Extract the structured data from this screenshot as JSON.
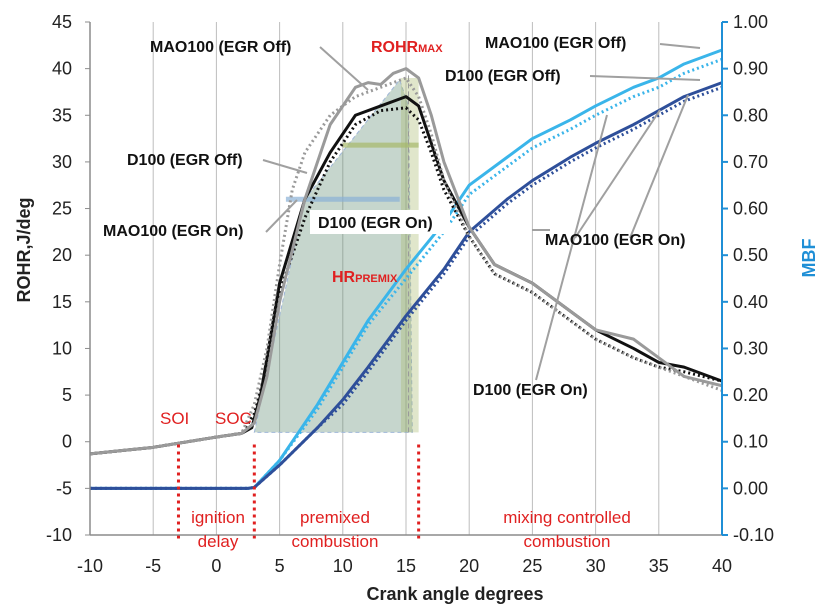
{
  "chart_data": {
    "type": "line",
    "xlabel": "Crank angle degrees",
    "ylabel": "ROHR,J/deg",
    "y2label": "MBF",
    "xlim": [
      -10,
      40
    ],
    "ylim": [
      -10,
      45
    ],
    "y2lim": [
      -0.1,
      1.0
    ],
    "xticks": [
      "-10",
      "-5",
      "0",
      "5",
      "10",
      "15",
      "20",
      "25",
      "30",
      "35",
      "40"
    ],
    "yticks": [
      "-10",
      "-5",
      "0",
      "5",
      "10",
      "15",
      "20",
      "25",
      "30",
      "35",
      "40",
      "45"
    ],
    "y2ticks": [
      "-0.10",
      "0.00",
      "0.10",
      "0.20",
      "0.30",
      "0.40",
      "0.50",
      "0.60",
      "0.70",
      "0.80",
      "0.90",
      "1.00"
    ],
    "grid": "vertical",
    "series_rohr": [
      {
        "color": "#111111",
        "dash": "solid",
        "x": [
          -10,
          -5,
          0,
          2,
          2.8,
          3.5,
          5,
          7,
          9,
          11,
          13,
          15,
          16,
          17,
          18,
          20,
          22,
          25,
          28,
          30,
          33,
          35,
          37,
          40
        ],
        "y": [
          -1.3,
          -0.6,
          0.5,
          0.9,
          1.5,
          5,
          17,
          26,
          31,
          35,
          36,
          37,
          36,
          32,
          28,
          23,
          19,
          17,
          14,
          12,
          10,
          8.5,
          8,
          6.5
        ]
      },
      {
        "color": "#111111",
        "dash": "dotted",
        "x": [
          -10,
          -5,
          0,
          2,
          3,
          4,
          5,
          7,
          9,
          11,
          13,
          15,
          16,
          17,
          18,
          20,
          22,
          25,
          28,
          30,
          33,
          35,
          37,
          40
        ],
        "y": [
          -1.3,
          -0.6,
          0.5,
          0.9,
          3,
          8,
          16,
          24,
          30,
          34,
          35.5,
          35.8,
          34.5,
          31,
          27,
          22,
          18,
          16,
          13,
          11,
          9,
          8,
          7.5,
          6.5
        ]
      },
      {
        "color": "#9a9a9a",
        "dash": "solid",
        "x": [
          -10,
          -5,
          0,
          2,
          3,
          4,
          5,
          7,
          9,
          11,
          12,
          13,
          14,
          15,
          16,
          17,
          18,
          20,
          22,
          25,
          28,
          30,
          33,
          35,
          37,
          40
        ],
        "y": [
          -1.3,
          -0.6,
          0.5,
          0.9,
          2,
          7,
          15,
          26,
          34,
          38,
          38.5,
          38.3,
          39.5,
          40,
          39,
          35,
          30,
          23,
          19,
          17,
          14,
          12,
          11,
          9,
          7,
          6
        ]
      },
      {
        "color": "#9a9a9a",
        "dash": "dotted",
        "x": [
          -10,
          -5,
          0,
          2,
          3,
          4,
          5,
          6,
          7,
          8,
          9,
          11,
          13,
          15,
          16,
          17,
          18,
          20,
          22,
          25,
          28,
          30,
          33,
          35,
          37,
          40
        ],
        "y": [
          -1.3,
          -0.6,
          0.5,
          0.9,
          4,
          10,
          19,
          27,
          31,
          33,
          35,
          37,
          38,
          39,
          37,
          33,
          28,
          22,
          18,
          16,
          13,
          11,
          9,
          8,
          7,
          5.5
        ]
      }
    ],
    "series_mbf": [
      {
        "color": "#3ab5ea",
        "dash": "solid",
        "x": [
          -10,
          2.5,
          3,
          5,
          8,
          10,
          12,
          15,
          18,
          20,
          23,
          25,
          28,
          30,
          33,
          35,
          37,
          40
        ],
        "y": [
          0,
          0,
          0.002,
          0.06,
          0.18,
          0.27,
          0.36,
          0.47,
          0.57,
          0.65,
          0.71,
          0.75,
          0.79,
          0.82,
          0.86,
          0.88,
          0.91,
          0.94
        ]
      },
      {
        "color": "#3ab5ea",
        "dash": "dotted",
        "x": [
          -10,
          2.5,
          3,
          5,
          8,
          10,
          12,
          15,
          18,
          20,
          23,
          25,
          28,
          30,
          33,
          35,
          37,
          40
        ],
        "y": [
          0,
          0,
          0.002,
          0.06,
          0.17,
          0.26,
          0.35,
          0.45,
          0.55,
          0.63,
          0.69,
          0.73,
          0.77,
          0.8,
          0.84,
          0.86,
          0.89,
          0.92
        ]
      },
      {
        "color": "#2e4f9a",
        "dash": "solid",
        "x": [
          -10,
          2.5,
          3,
          5,
          8,
          10,
          12,
          15,
          18,
          20,
          23,
          25,
          28,
          30,
          33,
          35,
          37,
          40
        ],
        "y": [
          0,
          0,
          0.002,
          0.05,
          0.13,
          0.19,
          0.26,
          0.37,
          0.47,
          0.55,
          0.62,
          0.66,
          0.71,
          0.74,
          0.78,
          0.81,
          0.84,
          0.87
        ]
      },
      {
        "color": "#2e4f9a",
        "dash": "dotted",
        "x": [
          -10,
          2.5,
          3,
          5,
          8,
          10,
          12,
          15,
          18,
          20,
          23,
          25,
          28,
          30,
          33,
          35,
          37,
          40
        ],
        "y": [
          0,
          0,
          0.002,
          0.05,
          0.13,
          0.18,
          0.25,
          0.36,
          0.46,
          0.54,
          0.61,
          0.65,
          0.7,
          0.73,
          0.77,
          0.8,
          0.83,
          0.86
        ]
      }
    ],
    "premix_area_vertices": [
      [
        3,
        1
      ],
      [
        7,
        26
      ],
      [
        14.5,
        38.8
      ],
      [
        15.2,
        36
      ],
      [
        15.5,
        1
      ]
    ],
    "premix_fill": "#5b8a70",
    "marker_lines_x": [
      -3,
      3,
      16
    ],
    "annotations": {
      "mao_off_top": "MAO100 (EGR Off)",
      "rohr_max": "ROHR",
      "rohr_max_sub": "MAX",
      "mao_off_right": "MAO100 (EGR Off)",
      "d100_off_right": "D100 (EGR Off)",
      "d100_off_left": "D100 (EGR Off)",
      "mao_on_left": "MAO100 (EGR On)",
      "d100_on_center": "D100 (EGR On)",
      "mao_on_right": "MAO100 (EGR On)",
      "d100_on_bottom": "D100 (EGR On)",
      "hr_premix": "HR",
      "hr_premix_sub": "PREMIX",
      "soi": "SOI",
      "soc": "SOC",
      "phase1_l1": "ignition",
      "phase1_l2": "delay",
      "phase2_l1": "premixed",
      "phase2_l2": "combustion",
      "phase3_l1": "mixing controlled",
      "phase3_l2": "combustion"
    }
  },
  "colors": {
    "mbf_axis": "#1f8fd6",
    "red": "#e02020"
  }
}
